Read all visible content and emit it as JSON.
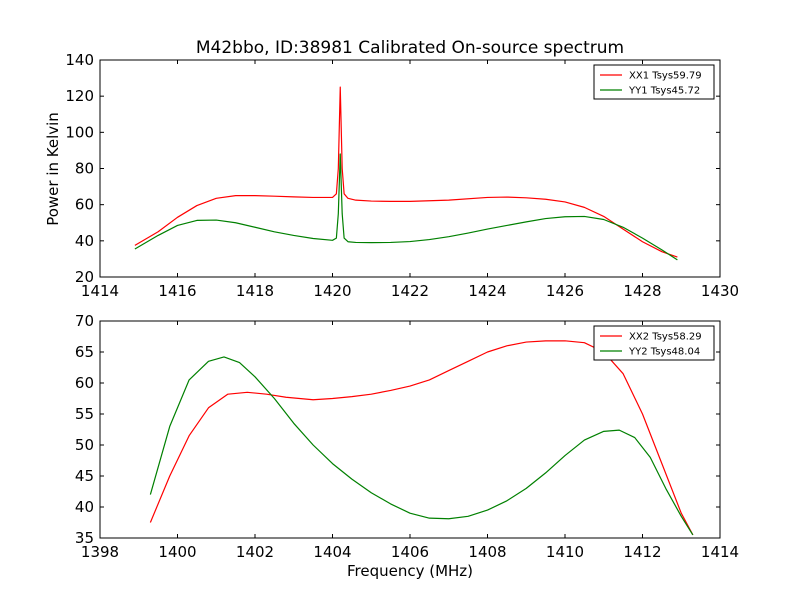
{
  "figure": {
    "title": "M42bbo, ID:38981 Calibrated On-source spectrum"
  },
  "chart_data": [
    {
      "type": "line",
      "title": "M42bbo, ID:38981 Calibrated On-source spectrum",
      "xlabel": "",
      "ylabel": "Power in Kelvin",
      "xlim": [
        1414,
        1430
      ],
      "ylim": [
        20,
        140
      ],
      "xticks": [
        1414,
        1416,
        1418,
        1420,
        1422,
        1424,
        1426,
        1428,
        1430
      ],
      "yticks": [
        20,
        40,
        60,
        80,
        100,
        120,
        140
      ],
      "grid": false,
      "legend_position": "top-right",
      "series": [
        {
          "name": "XX1 Tsys59.79",
          "color": "#ff0000",
          "x": [
            1414.9,
            1415.5,
            1416.0,
            1416.5,
            1417.0,
            1417.5,
            1418.0,
            1418.5,
            1419.0,
            1419.5,
            1420.0,
            1420.1,
            1420.15,
            1420.2,
            1420.25,
            1420.3,
            1420.4,
            1420.6,
            1421.0,
            1421.5,
            1422.0,
            1423.0,
            1424.0,
            1424.5,
            1425.0,
            1425.5,
            1426.0,
            1426.5,
            1427.0,
            1427.5,
            1428.0,
            1428.5,
            1428.9
          ],
          "y": [
            37.5,
            45,
            53,
            59.5,
            63.5,
            65,
            65,
            64.7,
            64.3,
            64,
            64,
            66,
            80,
            125,
            80,
            66,
            63.5,
            62.5,
            62,
            61.8,
            61.8,
            62.5,
            64,
            64.2,
            63.8,
            63,
            61.5,
            58.5,
            53.5,
            46.5,
            39.5,
            34,
            31
          ]
        },
        {
          "name": "YY1 Tsys45.72",
          "color": "#008000",
          "x": [
            1414.9,
            1415.5,
            1416.0,
            1416.5,
            1417.0,
            1417.5,
            1418.0,
            1418.5,
            1419.0,
            1419.5,
            1420.0,
            1420.1,
            1420.15,
            1420.2,
            1420.25,
            1420.3,
            1420.4,
            1420.6,
            1421.0,
            1421.5,
            1422.0,
            1422.5,
            1423.0,
            1423.5,
            1424.0,
            1424.5,
            1425.0,
            1425.5,
            1426.0,
            1426.5,
            1427.0,
            1427.5,
            1428.0,
            1428.5,
            1428.9
          ],
          "y": [
            35.5,
            43,
            48.5,
            51.3,
            51.5,
            50,
            47.5,
            45,
            43,
            41.3,
            40.3,
            41.5,
            55,
            88,
            55,
            41.5,
            39.5,
            39.1,
            39,
            39.1,
            39.6,
            40.7,
            42.3,
            44.3,
            46.5,
            48.5,
            50.5,
            52.3,
            53.3,
            53.5,
            51.8,
            47.5,
            41.5,
            35,
            29.5
          ]
        }
      ]
    },
    {
      "type": "line",
      "title": "",
      "xlabel": "Frequency (MHz)",
      "ylabel": "",
      "xlim": [
        1398,
        1414
      ],
      "ylim": [
        35,
        70
      ],
      "xticks": [
        1398,
        1400,
        1402,
        1404,
        1406,
        1408,
        1410,
        1412,
        1414
      ],
      "yticks": [
        35,
        40,
        45,
        50,
        55,
        60,
        65,
        70
      ],
      "grid": false,
      "legend_position": "top-right",
      "series": [
        {
          "name": "XX2 Tsys58.29",
          "color": "#ff0000",
          "x": [
            1399.3,
            1399.8,
            1400.3,
            1400.8,
            1401.3,
            1401.8,
            1402.3,
            1402.8,
            1403.5,
            1404.0,
            1404.5,
            1405.0,
            1405.5,
            1406.0,
            1406.5,
            1407.0,
            1407.5,
            1408.0,
            1408.5,
            1409.0,
            1409.5,
            1410.0,
            1410.5,
            1411.0,
            1411.5,
            1412.0,
            1412.5,
            1413.0,
            1413.3
          ],
          "y": [
            37.5,
            45,
            51.5,
            56,
            58.2,
            58.5,
            58.2,
            57.7,
            57.3,
            57.5,
            57.8,
            58.2,
            58.8,
            59.5,
            60.5,
            62,
            63.5,
            65,
            66,
            66.6,
            66.8,
            66.8,
            66.5,
            65,
            61.5,
            55,
            47,
            39,
            35.5
          ]
        },
        {
          "name": "YY2 Tsys48.04",
          "color": "#008000",
          "x": [
            1399.3,
            1399.8,
            1400.3,
            1400.8,
            1401.2,
            1401.6,
            1402.0,
            1402.5,
            1403.0,
            1403.5,
            1404.0,
            1404.5,
            1405.0,
            1405.5,
            1406.0,
            1406.5,
            1407.0,
            1407.5,
            1408.0,
            1408.5,
            1409.0,
            1409.5,
            1410.0,
            1410.5,
            1411.0,
            1411.4,
            1411.8,
            1412.2,
            1412.6,
            1413.0,
            1413.3
          ],
          "y": [
            42,
            53,
            60.5,
            63.5,
            64.2,
            63.3,
            61,
            57.5,
            53.5,
            50,
            47,
            44.5,
            42.3,
            40.5,
            39,
            38.2,
            38.1,
            38.5,
            39.5,
            41,
            43,
            45.5,
            48.3,
            50.8,
            52.2,
            52.4,
            51.2,
            48,
            43,
            38.5,
            35.5
          ]
        }
      ]
    }
  ]
}
